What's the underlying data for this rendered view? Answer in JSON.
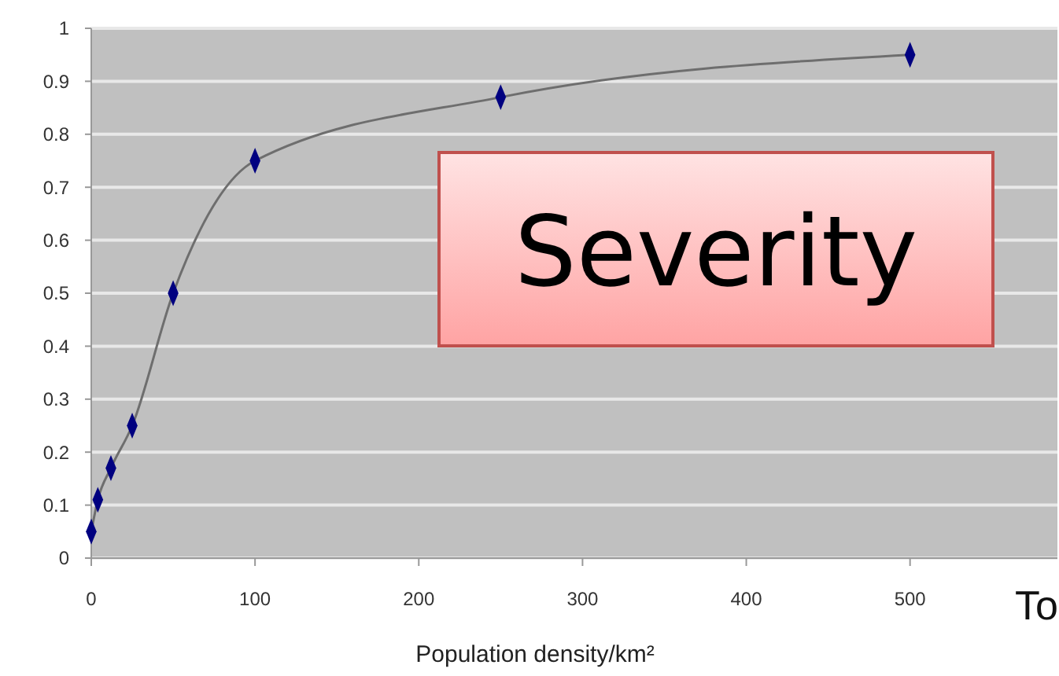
{
  "chart_data": {
    "type": "line",
    "xlabel": "Population density/km²",
    "x": [
      0,
      4,
      12,
      25,
      50,
      100,
      250,
      500
    ],
    "series": [
      {
        "color": "#000080",
        "values": [
          0.05,
          0.11,
          0.17,
          0.25,
          0.5,
          0.75,
          0.87,
          0.95
        ]
      }
    ],
    "xlim": [
      0,
      590
    ],
    "xticks": [
      0,
      100,
      200,
      300,
      400,
      500
    ],
    "ylim": [
      0,
      1
    ],
    "yticks": [
      0,
      0.1,
      0.2,
      0.3,
      0.4,
      0.5,
      0.6,
      0.7,
      0.8,
      0.9,
      1
    ],
    "grid": "y",
    "marker": "diamond",
    "line_style": "solid",
    "annotations": [
      "Severity",
      "To"
    ]
  }
}
